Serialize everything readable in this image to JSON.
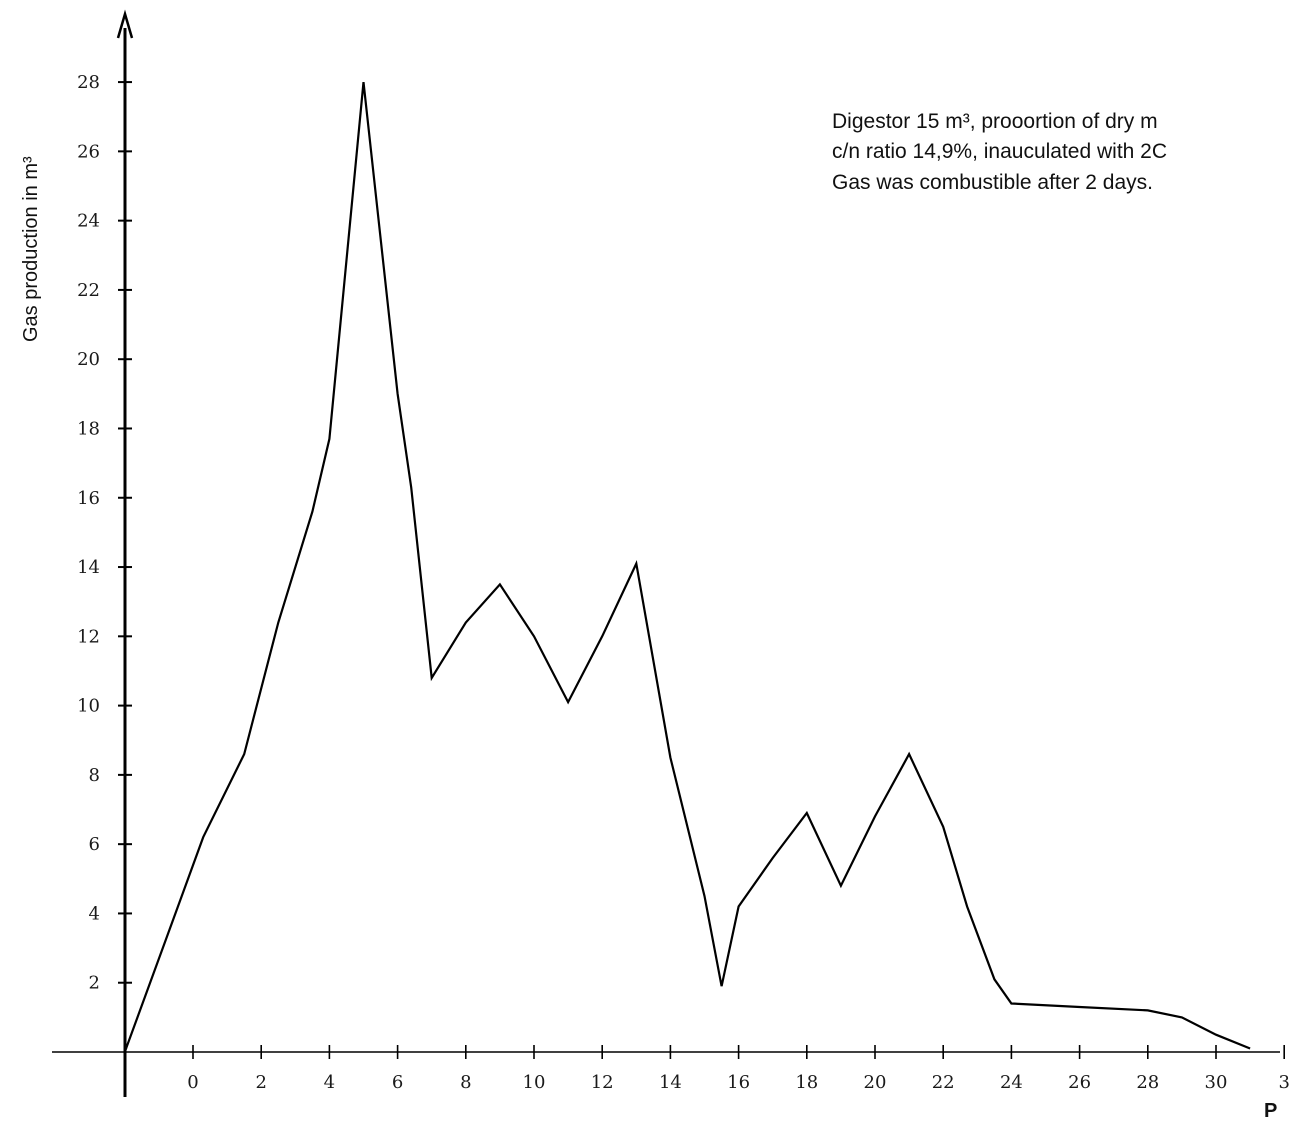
{
  "chart_data": {
    "type": "line",
    "ylabel": "Gas production in m³",
    "xlabel": "P",
    "annotation_lines": [
      "Digestor 15 m³, prooortion of dry m",
      "c/n ratio 14,9%, inauculated with 2C",
      "Gas was combustible after 2 days."
    ],
    "ylim": [
      0,
      28
    ],
    "y_ticks": [
      "2",
      "4",
      "6",
      "8",
      "10",
      "12",
      "14",
      "16",
      "18",
      "20",
      "22",
      "24",
      "26",
      "28"
    ],
    "x_ticks": [
      "0",
      "2",
      "4",
      "6",
      "8",
      "10",
      "12",
      "14",
      "16",
      "18",
      "20",
      "22",
      "24",
      "26",
      "28",
      "30",
      "3"
    ],
    "grid": false,
    "series": [
      {
        "values": [
          [
            -2,
            0
          ],
          [
            -0.7,
            3.5
          ],
          [
            0.3,
            6.2
          ],
          [
            1.5,
            8.6
          ],
          [
            2.5,
            12.4
          ],
          [
            3.5,
            15.6
          ],
          [
            4,
            17.7
          ],
          [
            5,
            28
          ],
          [
            6,
            19
          ],
          [
            6.4,
            16.3
          ],
          [
            7,
            10.8
          ],
          [
            8,
            12.4
          ],
          [
            9,
            13.5
          ],
          [
            10,
            12.0
          ],
          [
            11,
            10.1
          ],
          [
            12,
            12.0
          ],
          [
            13,
            14.1
          ],
          [
            14,
            8.5
          ],
          [
            15,
            4.5
          ],
          [
            15.5,
            1.9
          ],
          [
            16,
            4.2
          ],
          [
            17,
            5.6
          ],
          [
            18,
            6.9
          ],
          [
            19,
            4.8
          ],
          [
            20,
            6.8
          ],
          [
            21,
            8.6
          ],
          [
            22,
            6.5
          ],
          [
            22.7,
            4.2
          ],
          [
            23.5,
            2.1
          ],
          [
            24,
            1.4
          ],
          [
            26,
            1.3
          ],
          [
            28,
            1.2
          ],
          [
            29,
            1.0
          ],
          [
            30,
            0.5
          ],
          [
            31,
            0.1
          ]
        ]
      }
    ]
  }
}
